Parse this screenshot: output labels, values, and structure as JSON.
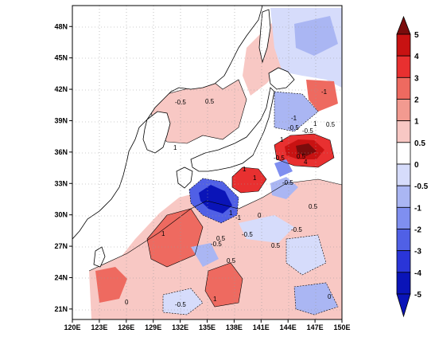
{
  "map": {
    "lon_ticks": [
      "120E",
      "123E",
      "126E",
      "129E",
      "132E",
      "135E",
      "138E",
      "141E",
      "144E",
      "147E",
      "150E"
    ],
    "lat_ticks": [
      "21N",
      "24N",
      "27N",
      "30N",
      "33N",
      "36N",
      "39N",
      "42N",
      "45N",
      "48N"
    ],
    "lon_range": [
      120,
      150
    ],
    "lat_range": [
      20,
      50
    ],
    "grid": "dotted"
  },
  "colorbar": {
    "ticks": [
      "5",
      "4",
      "3",
      "2",
      "1",
      "0.5",
      "0",
      "-0.5",
      "-1",
      "-2",
      "-3",
      "-4",
      "-5"
    ],
    "colors": [
      "#7a0c0c",
      "#c81212",
      "#e83030",
      "#ee6a60",
      "#f29a90",
      "#f8c8c4",
      "#ffffff",
      "#d6dcfb",
      "#aab6f3",
      "#7f8ff0",
      "#5060e6",
      "#2a35d8",
      "#0a14b8"
    ]
  },
  "contour_labels": [
    "-0.5",
    "0.5",
    "1",
    "-1",
    "1",
    "-0.5",
    "0.5",
    "-0.5",
    "-1",
    "1",
    "-0.5",
    "4",
    "-0.5",
    "1",
    "0.5",
    "1",
    "-1",
    "0.5",
    "-0.5",
    "-0.5",
    "0.5",
    "1",
    "-0.5",
    "0.5",
    "1",
    "0",
    "0",
    "0",
    "-0.5",
    "1",
    "0.5"
  ]
}
